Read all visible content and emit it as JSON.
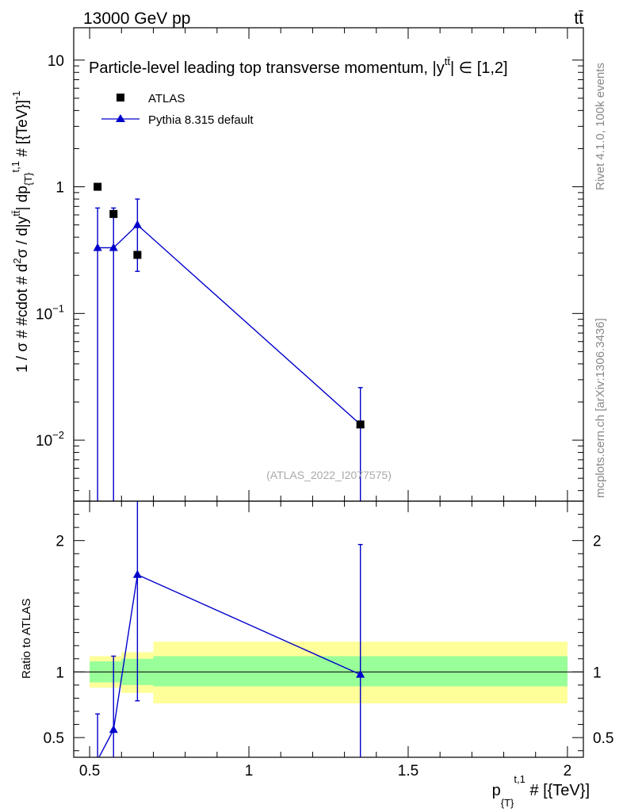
{
  "header": {
    "left": "13000 GeV pp",
    "right": "tt̄"
  },
  "side_labels": {
    "rivet": "Rivet 4.1.0,  100k events",
    "mcplots": "mcplots.cern.ch [arXiv:1306.3436]"
  },
  "watermark": "(ATLAS_2022_I2077575)",
  "colors": {
    "data": "#000000",
    "mc": "#0000cc",
    "band_inner": "#99ff99",
    "band_outer": "#ffff99"
  },
  "chart_data": [
    {
      "type": "scatter",
      "panel": "main",
      "title": "Particle-level leading top transverse momentum, |y^{tt̄}| ∈ [1,2]",
      "title_text": "Particle-level leading top transverse momentum, |y",
      "title_sup": "tt̄",
      "title_suffix": "| ∈ [1,2]",
      "ylabel": "1 / σ # #cdot # d²σ / d|y^{tt̄}| dp_{T}^{t,1} # [{TeV}]^{-1}",
      "ylabel_parts": {
        "a": "1 / σ # #cdot # d",
        "b": "2",
        "c": "σ / d|y",
        "d": "tt̄",
        "e": "| dp",
        "f": "{T}",
        "g": "t,1",
        "h": " # [{TeV}]",
        "i": "-1"
      },
      "yscale": "log",
      "ylim": [
        0.0033,
        18
      ],
      "xlim": [
        0.45,
        2.05
      ],
      "yticks": [
        {
          "value": 0.01,
          "base": "10",
          "exp": "−2"
        },
        {
          "value": 0.1,
          "base": "10",
          "exp": "−1"
        },
        {
          "value": 1,
          "base": "1",
          "exp": ""
        },
        {
          "value": 10,
          "base": "10",
          "exp": ""
        }
      ],
      "legend": [
        {
          "name": "ATLAS",
          "marker": "square"
        },
        {
          "name": "Pythia 8.315 default",
          "marker": "triangle"
        }
      ],
      "series": [
        {
          "name": "ATLAS",
          "x": [
            0.525,
            0.575,
            0.65,
            1.35
          ],
          "y": [
            1.0,
            0.61,
            0.29,
            0.0133
          ],
          "yerr_low": [
            0.0,
            0.0,
            0.0,
            0.0
          ],
          "yerr_high": [
            0.0,
            0.0,
            0.0,
            0.0
          ]
        },
        {
          "name": "Pythia 8.315 default",
          "x": [
            0.525,
            0.575,
            0.65,
            1.35
          ],
          "y": [
            0.33,
            0.33,
            0.5,
            0.0133
          ],
          "ylow": [
            0.0001,
            0.0001,
            0.215,
            0.0001
          ],
          "yhigh": [
            0.68,
            0.68,
            0.8,
            0.026
          ]
        }
      ]
    },
    {
      "type": "line",
      "panel": "ratio",
      "ylabel": "Ratio to ATLAS",
      "ylim": [
        0.35,
        2.3
      ],
      "xlim": [
        0.45,
        2.05
      ],
      "xlabel": "p_{T}^{t,1} # [{TeV}]",
      "xlabel_parts": {
        "a": "p",
        "b": "{T}",
        "c": "t,1",
        "d": " # [{TeV}]"
      },
      "xticks": [
        {
          "value": 0.5,
          "label": "0.5"
        },
        {
          "value": 1,
          "label": "1"
        },
        {
          "value": 1.5,
          "label": "1.5"
        },
        {
          "value": 2,
          "label": "2"
        }
      ],
      "yticks": [
        {
          "value": 0.5,
          "label": "0.5"
        },
        {
          "value": 1,
          "label": "1"
        },
        {
          "value": 2,
          "label": "2"
        }
      ],
      "bands": [
        {
          "x0": 0.5,
          "x1": 0.55,
          "inner": [
            0.92,
            1.08
          ],
          "outer": [
            0.88,
            1.12
          ]
        },
        {
          "x0": 0.55,
          "x1": 0.6,
          "inner": [
            0.92,
            1.08
          ],
          "outer": [
            0.88,
            1.12
          ]
        },
        {
          "x0": 0.6,
          "x1": 0.7,
          "inner": [
            0.9,
            1.1
          ],
          "outer": [
            0.84,
            1.15
          ]
        },
        {
          "x0": 0.7,
          "x1": 2.0,
          "inner": [
            0.89,
            1.12
          ],
          "outer": [
            0.76,
            1.23
          ]
        }
      ],
      "series": [
        {
          "name": "Pythia 8.315 default",
          "x": [
            0.525,
            0.575,
            0.65,
            1.35
          ],
          "y": [
            0.33,
            0.56,
            1.74,
            0.98
          ],
          "ylow": [
            0.0001,
            0.0001,
            0.78,
            0.0001
          ],
          "yhigh": [
            0.68,
            1.12,
            2.6,
            1.97
          ]
        }
      ]
    }
  ]
}
